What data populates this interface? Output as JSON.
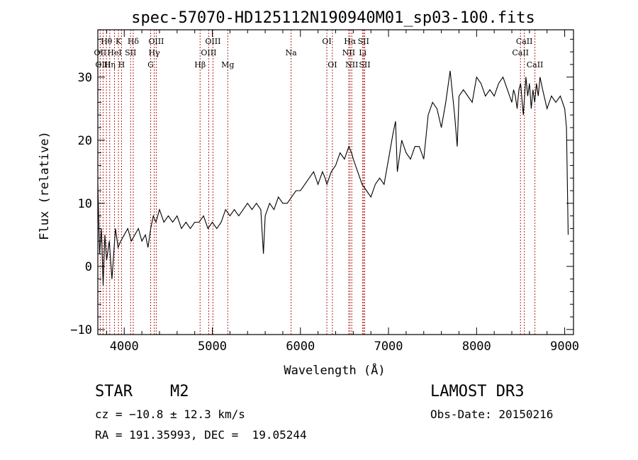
{
  "chart_data": {
    "type": "line",
    "title": "spec-57070-HD125112N190940M01_sp03-100.fits",
    "xlabel": "Wavelength (Å)",
    "ylabel": "Flux (relative)",
    "xlim": [
      3700,
      9100
    ],
    "ylim": [
      -10.8,
      37.5
    ],
    "x_ticks": [
      4000,
      5000,
      6000,
      7000,
      8000,
      9000
    ],
    "y_ticks": [
      -10,
      0,
      10,
      20,
      30
    ],
    "grid": false,
    "series": [
      {
        "name": "flux",
        "x": [
          3700,
          3720,
          3740,
          3760,
          3780,
          3800,
          3830,
          3860,
          3900,
          3930,
          3960,
          4000,
          4040,
          4080,
          4120,
          4160,
          4200,
          4240,
          4270,
          4300,
          4330,
          4360,
          4400,
          4450,
          4500,
          4550,
          4600,
          4650,
          4700,
          4750,
          4800,
          4850,
          4900,
          4950,
          5000,
          5050,
          5100,
          5150,
          5200,
          5250,
          5300,
          5350,
          5400,
          5450,
          5500,
          5550,
          5580,
          5600,
          5650,
          5700,
          5750,
          5800,
          5850,
          5900,
          5950,
          6000,
          6050,
          6100,
          6150,
          6200,
          6250,
          6280,
          6300,
          6350,
          6400,
          6450,
          6500,
          6550,
          6580,
          6600,
          6650,
          6700,
          6750,
          6800,
          6850,
          6900,
          6950,
          7000,
          7050,
          7080,
          7100,
          7150,
          7200,
          7250,
          7300,
          7350,
          7400,
          7450,
          7500,
          7550,
          7600,
          7650,
          7700,
          7750,
          7780,
          7800,
          7850,
          7900,
          7950,
          8000,
          8050,
          8100,
          8150,
          8200,
          8250,
          8300,
          8350,
          8400,
          8420,
          8440,
          8460,
          8480,
          8500,
          8530,
          8560,
          8580,
          8600,
          8620,
          8640,
          8660,
          8680,
          8700,
          8720,
          8750,
          8800,
          8850,
          8900,
          8950,
          9000,
          9020,
          9040
        ],
        "y": [
          13,
          2,
          6,
          -3,
          5,
          1,
          4,
          -2,
          6,
          3,
          4,
          5,
          6,
          4,
          5,
          6,
          4,
          5,
          3,
          6,
          8,
          7,
          9,
          7,
          8,
          7,
          8,
          6,
          7,
          6,
          7,
          7,
          8,
          6,
          7,
          6,
          7,
          9,
          8,
          9,
          8,
          9,
          10,
          9,
          10,
          9,
          2,
          8,
          10,
          9,
          11,
          10,
          10,
          11,
          12,
          12,
          13,
          14,
          15,
          13,
          15,
          14,
          13,
          15,
          16,
          18,
          17,
          19,
          18,
          17,
          15,
          13,
          12,
          11,
          13,
          14,
          13,
          17,
          21,
          23,
          15,
          20,
          18,
          17,
          19,
          19,
          17,
          24,
          26,
          25,
          22,
          26,
          31,
          24,
          19,
          27,
          28,
          27,
          26,
          30,
          29,
          27,
          28,
          27,
          29,
          30,
          28,
          26,
          28,
          27,
          25,
          28,
          29,
          24,
          30,
          27,
          29,
          25,
          28,
          26,
          29,
          27,
          30,
          28,
          25,
          27,
          26,
          27,
          25,
          22,
          5
        ]
      }
    ],
    "line_labels": [
      {
        "x": 3727,
        "label": "OII",
        "row": 2
      },
      {
        "x": 3760,
        "label": "OIII",
        "row": 3
      },
      {
        "x": 3798,
        "label": "Hθ",
        "row": 1
      },
      {
        "x": 3835,
        "label": "Hη",
        "row": 3
      },
      {
        "x": 3889,
        "label": "HeI",
        "row": 2
      },
      {
        "x": 3934,
        "label": "K",
        "row": 1
      },
      {
        "x": 3969,
        "label": "H",
        "row": 3
      },
      {
        "x": 4072,
        "label": "SII",
        "row": 2
      },
      {
        "x": 4102,
        "label": "Hδ",
        "row": 1
      },
      {
        "x": 4300,
        "label": "G",
        "row": 3
      },
      {
        "x": 4340,
        "label": "Hγ",
        "row": 2
      },
      {
        "x": 4363,
        "label": "OIII",
        "row": 1
      },
      {
        "x": 4861,
        "label": "Hβ",
        "row": 3
      },
      {
        "x": 4959,
        "label": "OIII",
        "row": 2
      },
      {
        "x": 5007,
        "label": "OIII",
        "row": 1
      },
      {
        "x": 5175,
        "label": "Mg",
        "row": 3
      },
      {
        "x": 5894,
        "label": "Na",
        "row": 2
      },
      {
        "x": 6300,
        "label": "OI",
        "row": 1
      },
      {
        "x": 6363,
        "label": "OI",
        "row": 3
      },
      {
        "x": 6548,
        "label": "NII",
        "row": 2
      },
      {
        "x": 6563,
        "label": "Hα",
        "row": 1
      },
      {
        "x": 6583,
        "label": "NII",
        "row": 3
      },
      {
        "x": 6707,
        "label": "Li",
        "row": 2
      },
      {
        "x": 6716,
        "label": "SII",
        "row": 1
      },
      {
        "x": 6730,
        "label": "SII",
        "row": 3
      },
      {
        "x": 8498,
        "label": "CaII",
        "row": 2
      },
      {
        "x": 8542,
        "label": "CaII",
        "row": 1
      },
      {
        "x": 8662,
        "label": "CaII",
        "row": 3
      }
    ]
  },
  "info": {
    "class_text": "STAR    M2",
    "survey_text": "LAMOST DR3",
    "cz_text": "cz = −10.8 ± 12.3 km/s",
    "obsdate_text": "Obs-Date: 20150216",
    "radec_text": "RA = 191.35993, DEC =  19.05244"
  }
}
